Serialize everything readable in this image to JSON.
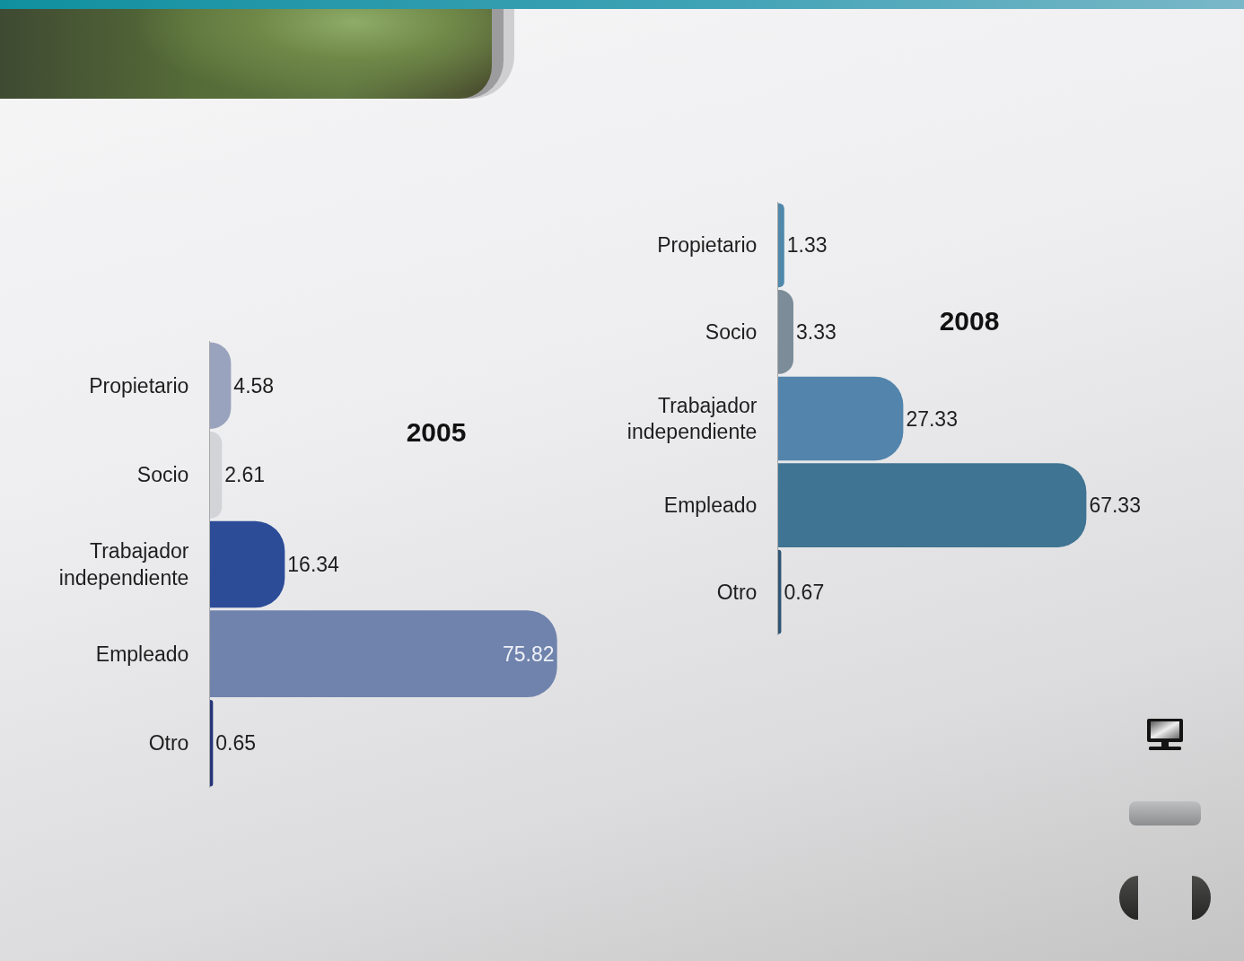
{
  "chart_data": [
    {
      "type": "bar",
      "title": "2005",
      "orientation": "horizontal",
      "categories": [
        "Propietario",
        "Socio",
        "Trabajador independiente",
        "Empleado",
        "Otro"
      ],
      "values": [
        4.58,
        2.61,
        16.34,
        75.82,
        0.65
      ],
      "colors": [
        "#9aa3bd",
        "#d2d4d8",
        "#2c4c98",
        "#7083ad",
        "#25357a"
      ],
      "data_labels": true,
      "tick_labels": "y"
    },
    {
      "type": "bar",
      "title": "2008",
      "orientation": "horizontal",
      "categories": [
        "Propietario",
        "Socio",
        "Trabajador independiente",
        "Empleado",
        "Otro"
      ],
      "values": [
        1.33,
        3.33,
        27.33,
        67.33,
        0.67
      ],
      "colors": [
        "#4f88aa",
        "#7c8c98",
        "#5284ac",
        "#3f7492",
        "#2f5675"
      ],
      "data_labels": true,
      "tick_labels": "y"
    }
  ]
}
